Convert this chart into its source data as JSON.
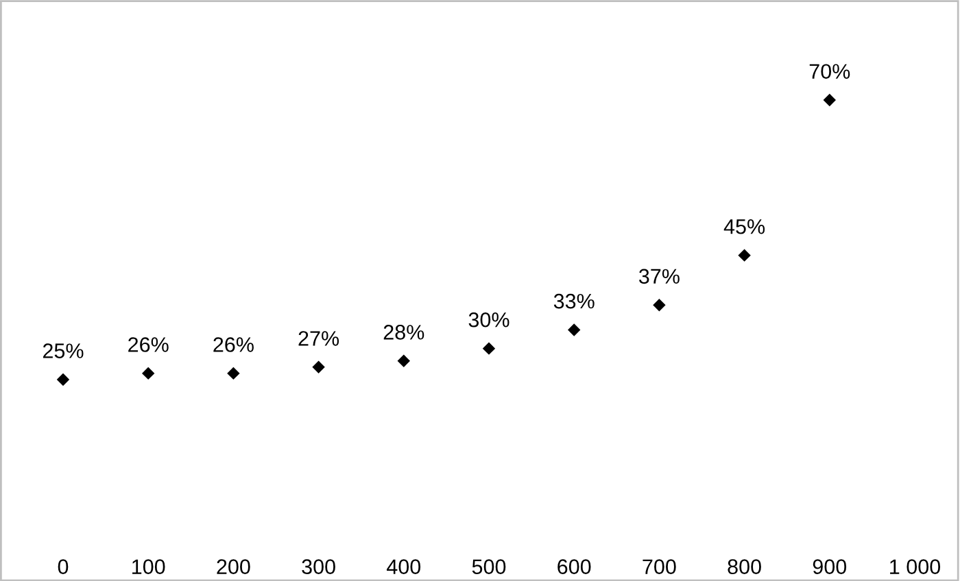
{
  "chart_data": {
    "type": "scatter",
    "x": [
      0,
      100,
      200,
      300,
      400,
      500,
      600,
      700,
      800,
      900
    ],
    "values": [
      25,
      26,
      26,
      27,
      28,
      30,
      33,
      37,
      45,
      70
    ],
    "value_labels": [
      "25%",
      "26%",
      "26%",
      "27%",
      "28%",
      "30%",
      "33%",
      "37%",
      "45%",
      "70%"
    ],
    "color": "#000000",
    "marker": "diamond",
    "xlim": [
      0,
      1000
    ],
    "xticks": [
      0,
      100,
      200,
      300,
      400,
      500,
      600,
      700,
      800,
      900,
      {
        "value": 1000,
        "label": "1 000"
      }
    ],
    "tick_labels": "x",
    "grid": false,
    "legend": false
  }
}
